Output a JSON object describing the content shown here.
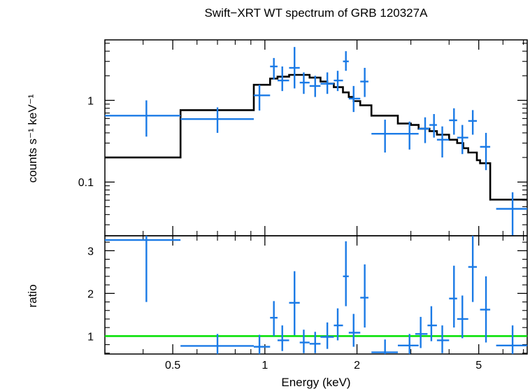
{
  "chart_data": [
    {
      "type": "scatter",
      "panel": "spectrum",
      "title": "Swift−XRT WT spectrum of GRB 120327A",
      "ylabel": "counts s⁻¹ keV⁻¹",
      "x_scale": "log",
      "y_scale": "log",
      "xlim": [
        0.3,
        7.2
      ],
      "ylim": [
        0.022,
        5.5
      ],
      "yticks": [
        {
          "value": 0.1,
          "label": "0.1"
        },
        {
          "value": 1,
          "label": "1"
        }
      ],
      "colors": {
        "data": "#1a7ae6",
        "model": "#000000"
      },
      "series": [
        {
          "kind": "data",
          "points": [
            {
              "x": 0.41,
              "xlo": 0.3,
              "xhi": 0.53,
              "y": 0.65,
              "ylo": 0.36,
              "yhi": 1.0
            },
            {
              "x": 0.7,
              "xlo": 0.53,
              "xhi": 0.92,
              "y": 0.59,
              "ylo": 0.4,
              "yhi": 0.82
            },
            {
              "x": 0.96,
              "xlo": 0.92,
              "xhi": 1.04,
              "y": 1.15,
              "ylo": 0.75,
              "yhi": 1.55
            },
            {
              "x": 1.07,
              "xlo": 1.04,
              "xhi": 1.1,
              "y": 2.6,
              "ylo": 1.8,
              "yhi": 3.3
            },
            {
              "x": 1.14,
              "xlo": 1.1,
              "xhi": 1.2,
              "y": 1.75,
              "ylo": 1.3,
              "yhi": 2.6
            },
            {
              "x": 1.25,
              "xlo": 1.2,
              "xhi": 1.3,
              "y": 2.5,
              "ylo": 1.4,
              "yhi": 4.5
            },
            {
              "x": 1.34,
              "xlo": 1.3,
              "xhi": 1.4,
              "y": 1.65,
              "ylo": 1.2,
              "yhi": 2.2
            },
            {
              "x": 1.46,
              "xlo": 1.4,
              "xhi": 1.52,
              "y": 1.5,
              "ylo": 1.1,
              "yhi": 2.0
            },
            {
              "x": 1.6,
              "xlo": 1.52,
              "xhi": 1.68,
              "y": 1.6,
              "ylo": 1.2,
              "yhi": 2.2
            },
            {
              "x": 1.73,
              "xlo": 1.68,
              "xhi": 1.8,
              "y": 1.75,
              "ylo": 1.3,
              "yhi": 2.3
            },
            {
              "x": 1.84,
              "xlo": 1.8,
              "xhi": 1.88,
              "y": 3.0,
              "ylo": 2.3,
              "yhi": 4.0
            },
            {
              "x": 1.95,
              "xlo": 1.88,
              "xhi": 2.05,
              "y": 1.05,
              "ylo": 0.72,
              "yhi": 1.5
            },
            {
              "x": 2.12,
              "xlo": 2.05,
              "xhi": 2.18,
              "y": 1.7,
              "ylo": 1.1,
              "yhi": 2.5
            },
            {
              "x": 2.47,
              "xlo": 2.23,
              "xhi": 2.72,
              "y": 0.39,
              "ylo": 0.23,
              "yhi": 0.58
            },
            {
              "x": 2.97,
              "xlo": 2.72,
              "xhi": 3.18,
              "y": 0.39,
              "ylo": 0.25,
              "yhi": 0.55
            },
            {
              "x": 3.34,
              "xlo": 3.18,
              "xhi": 3.45,
              "y": 0.45,
              "ylo": 0.3,
              "yhi": 0.62
            },
            {
              "x": 3.57,
              "xlo": 3.45,
              "xhi": 3.65,
              "y": 0.5,
              "ylo": 0.35,
              "yhi": 0.68
            },
            {
              "x": 3.8,
              "xlo": 3.65,
              "xhi": 4.0,
              "y": 0.33,
              "ylo": 0.2,
              "yhi": 0.48
            },
            {
              "x": 4.15,
              "xlo": 4.0,
              "xhi": 4.25,
              "y": 0.57,
              "ylo": 0.38,
              "yhi": 0.8
            },
            {
              "x": 4.42,
              "xlo": 4.25,
              "xhi": 4.62,
              "y": 0.35,
              "ylo": 0.22,
              "yhi": 0.5
            },
            {
              "x": 4.78,
              "xlo": 4.62,
              "xhi": 4.93,
              "y": 0.56,
              "ylo": 0.38,
              "yhi": 0.76
            },
            {
              "x": 5.28,
              "xlo": 5.05,
              "xhi": 5.45,
              "y": 0.27,
              "ylo": 0.14,
              "yhi": 0.4
            },
            {
              "x": 6.45,
              "xlo": 5.7,
              "xhi": 7.2,
              "y": 0.047,
              "ylo": 0.022,
              "yhi": 0.075
            }
          ]
        },
        {
          "kind": "model",
          "steps": [
            {
              "x": 0.3,
              "y": 0.2
            },
            {
              "x": 0.53,
              "y": 0.76
            },
            {
              "x": 0.92,
              "y": 1.55
            },
            {
              "x": 1.04,
              "y": 1.85
            },
            {
              "x": 1.1,
              "y": 1.95
            },
            {
              "x": 1.2,
              "y": 2.05
            },
            {
              "x": 1.3,
              "y": 2.05
            },
            {
              "x": 1.4,
              "y": 1.9
            },
            {
              "x": 1.52,
              "y": 1.7
            },
            {
              "x": 1.6,
              "y": 1.6
            },
            {
              "x": 1.68,
              "y": 1.45
            },
            {
              "x": 1.8,
              "y": 1.25
            },
            {
              "x": 1.88,
              "y": 1.1
            },
            {
              "x": 1.95,
              "y": 0.98
            },
            {
              "x": 2.05,
              "y": 0.87
            },
            {
              "x": 2.23,
              "y": 0.65
            },
            {
              "x": 2.72,
              "y": 0.52
            },
            {
              "x": 3.0,
              "y": 0.5
            },
            {
              "x": 3.18,
              "y": 0.45
            },
            {
              "x": 3.45,
              "y": 0.42
            },
            {
              "x": 3.65,
              "y": 0.38
            },
            {
              "x": 4.0,
              "y": 0.33
            },
            {
              "x": 4.25,
              "y": 0.3
            },
            {
              "x": 4.45,
              "y": 0.26
            },
            {
              "x": 4.62,
              "y": 0.23
            },
            {
              "x": 4.93,
              "y": 0.185
            },
            {
              "x": 5.05,
              "y": 0.17
            },
            {
              "x": 5.45,
              "y": 0.061
            },
            {
              "x": 7.2,
              "y": 0.061
            }
          ]
        }
      ]
    },
    {
      "type": "scatter",
      "panel": "ratio",
      "xlabel": "Energy (keV)",
      "ylabel": "ratio",
      "x_scale": "log",
      "xlim": [
        0.3,
        7.2
      ],
      "ylim": [
        0.58,
        3.35
      ],
      "xticks": [
        {
          "value": 0.5,
          "label": "0.5"
        },
        {
          "value": 1,
          "label": "1"
        },
        {
          "value": 2,
          "label": "2"
        },
        {
          "value": 5,
          "label": "5"
        }
      ],
      "yticks": [
        {
          "value": 1,
          "label": "1"
        },
        {
          "value": 2,
          "label": "2"
        },
        {
          "value": 3,
          "label": "3"
        }
      ],
      "reference_line": {
        "y": 1,
        "color": "#00e000"
      },
      "colors": {
        "data": "#1a7ae6"
      },
      "points": [
        {
          "x": 0.41,
          "xlo": 0.3,
          "xhi": 0.53,
          "y": 3.25,
          "ylo": 1.8,
          "yhi": 3.35
        },
        {
          "x": 0.7,
          "xlo": 0.53,
          "xhi": 0.92,
          "y": 0.77,
          "ylo": 0.58,
          "yhi": 1.05
        },
        {
          "x": 0.96,
          "xlo": 0.92,
          "xhi": 1.04,
          "y": 0.75,
          "ylo": 0.58,
          "yhi": 1.03
        },
        {
          "x": 1.07,
          "xlo": 1.04,
          "xhi": 1.1,
          "y": 1.43,
          "ylo": 1.0,
          "yhi": 1.82
        },
        {
          "x": 1.14,
          "xlo": 1.1,
          "xhi": 1.2,
          "y": 0.9,
          "ylo": 0.65,
          "yhi": 1.25
        },
        {
          "x": 1.25,
          "xlo": 1.2,
          "xhi": 1.3,
          "y": 1.78,
          "ylo": 1.02,
          "yhi": 2.52
        },
        {
          "x": 1.34,
          "xlo": 1.3,
          "xhi": 1.4,
          "y": 0.85,
          "ylo": 0.6,
          "yhi": 1.15
        },
        {
          "x": 1.46,
          "xlo": 1.4,
          "xhi": 1.52,
          "y": 0.82,
          "ylo": 0.6,
          "yhi": 1.1
        },
        {
          "x": 1.6,
          "xlo": 1.52,
          "xhi": 1.68,
          "y": 0.98,
          "ylo": 0.7,
          "yhi": 1.32
        },
        {
          "x": 1.73,
          "xlo": 1.68,
          "xhi": 1.8,
          "y": 1.25,
          "ylo": 0.9,
          "yhi": 1.65
        },
        {
          "x": 1.84,
          "xlo": 1.8,
          "xhi": 1.88,
          "y": 2.4,
          "ylo": 1.7,
          "yhi": 3.22
        },
        {
          "x": 1.95,
          "xlo": 1.88,
          "xhi": 2.05,
          "y": 1.08,
          "ylo": 0.75,
          "yhi": 1.52
        },
        {
          "x": 2.12,
          "xlo": 2.05,
          "xhi": 2.18,
          "y": 1.9,
          "ylo": 1.2,
          "yhi": 2.68
        },
        {
          "x": 2.47,
          "xlo": 2.23,
          "xhi": 2.72,
          "y": 0.62,
          "ylo": 0.58,
          "yhi": 0.92
        },
        {
          "x": 2.97,
          "xlo": 2.72,
          "xhi": 3.18,
          "y": 0.78,
          "ylo": 0.58,
          "yhi": 1.05
        },
        {
          "x": 3.23,
          "xlo": 3.1,
          "xhi": 3.4,
          "y": 1.05,
          "ylo": 0.72,
          "yhi": 1.45
        },
        {
          "x": 3.5,
          "xlo": 3.4,
          "xhi": 3.65,
          "y": 1.25,
          "ylo": 0.88,
          "yhi": 1.7
        },
        {
          "x": 3.8,
          "xlo": 3.65,
          "xhi": 4.0,
          "y": 0.9,
          "ylo": 0.6,
          "yhi": 1.25
        },
        {
          "x": 4.15,
          "xlo": 4.0,
          "xhi": 4.25,
          "y": 1.88,
          "ylo": 1.2,
          "yhi": 2.65
        },
        {
          "x": 4.42,
          "xlo": 4.25,
          "xhi": 4.62,
          "y": 1.4,
          "ylo": 0.95,
          "yhi": 1.95
        },
        {
          "x": 4.78,
          "xlo": 4.62,
          "xhi": 4.93,
          "y": 2.62,
          "ylo": 1.8,
          "yhi": 3.35
        },
        {
          "x": 5.28,
          "xlo": 5.05,
          "xhi": 5.45,
          "y": 1.62,
          "ylo": 0.85,
          "yhi": 2.4
        },
        {
          "x": 6.45,
          "xlo": 5.7,
          "xhi": 7.2,
          "y": 0.78,
          "ylo": 0.58,
          "yhi": 1.25
        }
      ]
    }
  ]
}
